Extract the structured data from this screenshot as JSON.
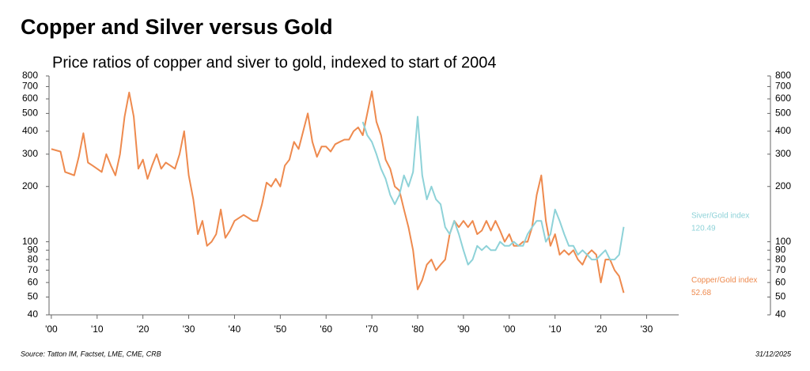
{
  "chart_data": {
    "type": "line",
    "title": "Copper and Silver versus Gold",
    "subtitle": "Price ratios of copper and siver to gold, indexed to start of 2004",
    "source": "Source: Tatton IM, Factset, LME, CME, CRB",
    "date": "31/12/2025",
    "log_y": true,
    "x": [
      1900,
      1901,
      1902,
      1903,
      1904,
      1905,
      1906,
      1907,
      1908,
      1909,
      1910,
      1911,
      1912,
      1913,
      1914,
      1915,
      1916,
      1917,
      1918,
      1919,
      1920,
      1921,
      1922,
      1923,
      1924,
      1925,
      1926,
      1927,
      1928,
      1929,
      1930,
      1931,
      1932,
      1933,
      1934,
      1935,
      1936,
      1937,
      1938,
      1939,
      1940,
      1941,
      1942,
      1943,
      1944,
      1945,
      1946,
      1947,
      1948,
      1949,
      1950,
      1951,
      1952,
      1953,
      1954,
      1955,
      1956,
      1957,
      1958,
      1959,
      1960,
      1961,
      1962,
      1963,
      1964,
      1965,
      1966,
      1967,
      1968,
      1969,
      1970,
      1971,
      1972,
      1973,
      1974,
      1975,
      1976,
      1977,
      1978,
      1979,
      1980,
      1981,
      1982,
      1983,
      1984,
      1985,
      1986,
      1987,
      1988,
      1989,
      1990,
      1991,
      1992,
      1993,
      1994,
      1995,
      1996,
      1997,
      1998,
      1999,
      2000,
      2001,
      2002,
      2003,
      2004,
      2005,
      2006,
      2007,
      2008,
      2009,
      2010,
      2011,
      2012,
      2013,
      2014,
      2015,
      2016,
      2017,
      2018,
      2019,
      2020,
      2021,
      2022,
      2023,
      2024,
      2025
    ],
    "series": [
      {
        "name": "Copper/Gold index",
        "color": "#ee8a4e",
        "values": [
          320,
          315,
          310,
          240,
          235,
          230,
          290,
          390,
          270,
          260,
          250,
          240,
          300,
          260,
          230,
          300,
          480,
          650,
          480,
          250,
          280,
          220,
          260,
          300,
          250,
          270,
          260,
          250,
          300,
          400,
          230,
          170,
          110,
          130,
          95,
          100,
          110,
          150,
          105,
          115,
          130,
          135,
          140,
          135,
          130,
          130,
          160,
          210,
          200,
          220,
          200,
          260,
          280,
          350,
          320,
          400,
          500,
          350,
          290,
          330,
          330,
          310,
          340,
          350,
          360,
          360,
          400,
          420,
          380,
          500,
          660,
          450,
          380,
          280,
          250,
          200,
          190,
          150,
          120,
          90,
          55,
          62,
          75,
          80,
          70,
          75,
          80,
          110,
          130,
          120,
          130,
          120,
          130,
          110,
          115,
          130,
          115,
          130,
          115,
          100,
          110,
          95,
          95,
          100,
          100,
          120,
          180,
          230,
          130,
          95,
          110,
          85,
          90,
          85,
          90,
          80,
          75,
          85,
          90,
          85,
          60,
          80,
          80,
          70,
          65,
          52.68
        ]
      },
      {
        "name": "Siver/Gold index",
        "color": "#8ed2d8",
        "values": [
          null,
          null,
          null,
          null,
          null,
          null,
          null,
          null,
          null,
          null,
          null,
          null,
          null,
          null,
          null,
          null,
          null,
          null,
          null,
          null,
          null,
          null,
          null,
          null,
          null,
          null,
          null,
          null,
          null,
          null,
          null,
          null,
          null,
          null,
          null,
          null,
          null,
          null,
          null,
          null,
          null,
          null,
          null,
          null,
          null,
          null,
          null,
          null,
          null,
          null,
          null,
          null,
          null,
          null,
          null,
          null,
          null,
          null,
          null,
          null,
          null,
          null,
          null,
          null,
          null,
          null,
          null,
          null,
          450,
          380,
          350,
          300,
          250,
          220,
          180,
          160,
          180,
          230,
          200,
          240,
          480,
          230,
          170,
          200,
          170,
          160,
          120,
          110,
          130,
          110,
          90,
          75,
          80,
          95,
          90,
          95,
          90,
          90,
          100,
          95,
          95,
          100,
          95,
          95,
          110,
          120,
          130,
          130,
          100,
          110,
          150,
          130,
          110,
          95,
          95,
          85,
          90,
          85,
          80,
          80,
          85,
          90,
          80,
          80,
          85,
          120.49
        ]
      }
    ],
    "xlim": [
      1899.5,
      2037
    ],
    "xticks": [
      {
        "value": 1900,
        "label": "'00"
      },
      {
        "value": 1910,
        "label": "'10"
      },
      {
        "value": 1920,
        "label": "'20"
      },
      {
        "value": 1930,
        "label": "'30"
      },
      {
        "value": 1940,
        "label": "'40"
      },
      {
        "value": 1950,
        "label": "'50"
      },
      {
        "value": 1960,
        "label": "'60"
      },
      {
        "value": 1970,
        "label": "'70"
      },
      {
        "value": 1980,
        "label": "'80"
      },
      {
        "value": 1990,
        "label": "'90"
      },
      {
        "value": 2000,
        "label": "'00"
      },
      {
        "value": 2010,
        "label": "'10"
      },
      {
        "value": 2020,
        "label": "'20"
      },
      {
        "value": 2030,
        "label": "'30"
      }
    ],
    "ylim": [
      40,
      800
    ],
    "yticks": [
      40,
      50,
      60,
      70,
      80,
      90,
      100,
      200,
      300,
      400,
      500,
      600,
      700,
      800
    ],
    "y2lim": [
      40,
      800
    ],
    "y2ticks": [
      40,
      50,
      60,
      70,
      80,
      90,
      100,
      200,
      300,
      400,
      500,
      600,
      700,
      800
    ]
  }
}
